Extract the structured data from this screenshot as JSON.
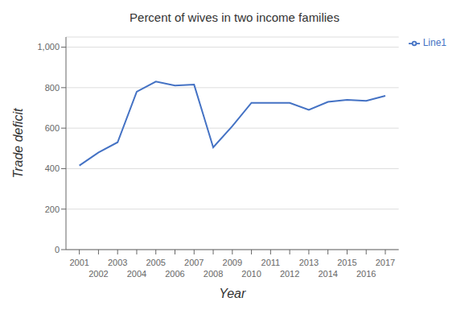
{
  "chart_data": {
    "type": "line",
    "title": "Percent of wives in two income families",
    "xlabel": "Year",
    "ylabel": "Trade deficit",
    "x": [
      2001,
      2002,
      2003,
      2004,
      2005,
      2006,
      2007,
      2008,
      2009,
      2010,
      2011,
      2012,
      2013,
      2014,
      2015,
      2016,
      2017
    ],
    "series": [
      {
        "name": "Line1",
        "color": "#4472C4",
        "values": [
          415,
          480,
          530,
          780,
          830,
          810,
          815,
          505,
          610,
          725,
          725,
          725,
          690,
          730,
          740,
          735,
          760
        ]
      }
    ],
    "xlim": [
      2000.3,
      2017.7
    ],
    "xticks": [
      2001,
      2002,
      2003,
      2004,
      2005,
      2006,
      2007,
      2008,
      2009,
      2010,
      2011,
      2012,
      2013,
      2014,
      2015,
      2016,
      2017
    ],
    "ylim": [
      0,
      1050
    ],
    "yticks": [
      0,
      200,
      400,
      600,
      800,
      {
        "value": 1000,
        "label": "1,000"
      }
    ],
    "grid": "y",
    "legend": "right"
  }
}
